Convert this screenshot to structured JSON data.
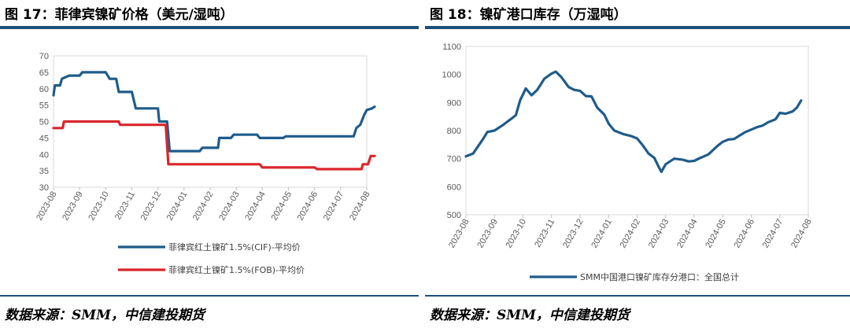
{
  "left": {
    "title": "图 17：菲律宾镍矿价格（美元/湿吨）",
    "source": "数据来源：SMM，中信建投期货"
  },
  "right": {
    "title": "图 18：镍矿港口库存（万湿吨）",
    "source": "数据来源：SMM，中信建投期货"
  },
  "colors": {
    "navy": "#1f5c8b",
    "red": "#d9262c",
    "rule": "#1f4e79"
  },
  "chart_data": [
    {
      "type": "line",
      "x_ticks": [
        "2023-08",
        "2023-09",
        "2023-10",
        "2023-11",
        "2023-12",
        "2024-01",
        "2024-02",
        "2024-03",
        "2024-04",
        "2024-05",
        "2024-06",
        "2024-07",
        "2024-08"
      ],
      "ylim": [
        30,
        70
      ],
      "y_ticks": [
        30,
        35,
        40,
        45,
        50,
        55,
        60,
        65,
        70
      ],
      "grid": false,
      "legend_position": "bottom",
      "series": [
        {
          "name": "菲律宾红土镍矿1.5%(CIF)-平均价",
          "color": "#1f5c8b",
          "points": [
            [
              0,
              58
            ],
            [
              0.05,
              61
            ],
            [
              0.25,
              61
            ],
            [
              0.32,
              63
            ],
            [
              0.6,
              64
            ],
            [
              1.0,
              64
            ],
            [
              1.1,
              65
            ],
            [
              2.0,
              65
            ],
            [
              2.15,
              63
            ],
            [
              2.4,
              63
            ],
            [
              2.5,
              59
            ],
            [
              3.0,
              59
            ],
            [
              3.15,
              54
            ],
            [
              4.0,
              54
            ],
            [
              4.05,
              50
            ],
            [
              4.35,
              50
            ],
            [
              4.45,
              41
            ],
            [
              5.6,
              41
            ],
            [
              5.7,
              42
            ],
            [
              6.3,
              42
            ],
            [
              6.35,
              45
            ],
            [
              6.8,
              45
            ],
            [
              6.9,
              46
            ],
            [
              7.8,
              46
            ],
            [
              7.9,
              45
            ],
            [
              8.8,
              45
            ],
            [
              8.9,
              45.5
            ],
            [
              11.5,
              45.5
            ],
            [
              11.6,
              48
            ],
            [
              11.75,
              49
            ],
            [
              11.9,
              52
            ],
            [
              12.0,
              53.5
            ],
            [
              12.2,
              54
            ],
            [
              12.3,
              54.5
            ]
          ]
        },
        {
          "name": "菲律宾红土镍矿1.5%(FOB)-平均价",
          "color": "#d9262c",
          "points": [
            [
              0,
              48
            ],
            [
              0.35,
              48
            ],
            [
              0.4,
              50
            ],
            [
              2.5,
              50
            ],
            [
              2.55,
              49
            ],
            [
              4.3,
              49
            ],
            [
              4.4,
              37
            ],
            [
              7.9,
              37
            ],
            [
              8.0,
              36
            ],
            [
              10.0,
              36
            ],
            [
              10.1,
              35.5
            ],
            [
              11.8,
              35.5
            ],
            [
              11.85,
              37
            ],
            [
              12.05,
              37
            ],
            [
              12.15,
              39.5
            ],
            [
              12.3,
              39.5
            ]
          ]
        }
      ]
    },
    {
      "type": "line",
      "x_ticks": [
        "2023-08",
        "2023-09",
        "2023-10",
        "2023-11",
        "2023-12",
        "2024-01",
        "2024-02",
        "2024-03",
        "2024-04",
        "2024-05",
        "2024-06",
        "2024-07",
        "2024-08"
      ],
      "ylim": [
        500,
        1100
      ],
      "y_ticks": [
        500,
        600,
        700,
        800,
        900,
        1000,
        1100
      ],
      "grid": false,
      "legend_position": "bottom",
      "series": [
        {
          "name": "SMM中国港口镍矿库存分港口：全国总计",
          "color": "#1f5c8b",
          "points": [
            [
              0,
              708
            ],
            [
              0.25,
              718
            ],
            [
              0.6,
              770
            ],
            [
              0.75,
              795
            ],
            [
              1.0,
              800
            ],
            [
              1.3,
              820
            ],
            [
              1.6,
              843
            ],
            [
              1.75,
              855
            ],
            [
              1.9,
              908
            ],
            [
              2.1,
              950
            ],
            [
              2.3,
              926
            ],
            [
              2.5,
              945
            ],
            [
              2.75,
              985
            ],
            [
              3.0,
              1003
            ],
            [
              3.15,
              1010
            ],
            [
              3.35,
              990
            ],
            [
              3.6,
              955
            ],
            [
              3.8,
              945
            ],
            [
              4.0,
              942
            ],
            [
              4.2,
              923
            ],
            [
              4.4,
              922
            ],
            [
              4.6,
              882
            ],
            [
              4.85,
              857
            ],
            [
              5.0,
              825
            ],
            [
              5.2,
              800
            ],
            [
              5.5,
              788
            ],
            [
              5.8,
              780
            ],
            [
              6.0,
              772
            ],
            [
              6.2,
              747
            ],
            [
              6.4,
              718
            ],
            [
              6.6,
              703
            ],
            [
              6.75,
              672
            ],
            [
              6.85,
              653
            ],
            [
              7.0,
              680
            ],
            [
              7.3,
              700
            ],
            [
              7.6,
              696
            ],
            [
              7.8,
              690
            ],
            [
              8.0,
              692
            ],
            [
              8.2,
              702
            ],
            [
              8.5,
              715
            ],
            [
              8.8,
              744
            ],
            [
              9.0,
              760
            ],
            [
              9.2,
              768
            ],
            [
              9.4,
              770
            ],
            [
              9.6,
              783
            ],
            [
              9.8,
              795
            ],
            [
              10.2,
              812
            ],
            [
              10.4,
              818
            ],
            [
              10.6,
              830
            ],
            [
              10.85,
              840
            ],
            [
              11.0,
              863
            ],
            [
              11.2,
              860
            ],
            [
              11.45,
              868
            ],
            [
              11.6,
              882
            ],
            [
              11.75,
              907
            ]
          ]
        }
      ]
    }
  ]
}
